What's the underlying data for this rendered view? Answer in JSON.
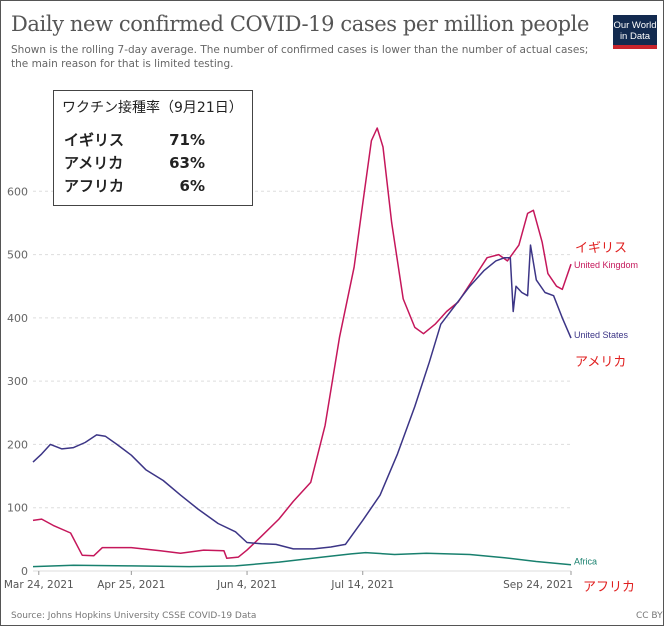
{
  "header": {
    "title": "Daily new confirmed COVID-19 cases per million people",
    "subtitle": "Shown is the rolling 7-day average. The number of confirmed cases is lower than the number of actual cases; the main reason for that is limited testing.",
    "logo_line1": "Our World",
    "logo_line2": "in Data"
  },
  "vaccine_box": {
    "title": "ワクチン接種率（9月21日）",
    "rows": [
      {
        "name": "イギリス",
        "pct": "71%"
      },
      {
        "name": "アメリカ",
        "pct": "63%"
      },
      {
        "name": "アフリカ",
        "pct": "6%"
      }
    ]
  },
  "jp_labels": {
    "uk": "イギリス",
    "us": "アメリカ",
    "africa": "アフリカ"
  },
  "footer": {
    "source": "Source: Johns Hopkins University CSSE COVID-19 Data",
    "license": "CC BY"
  },
  "colors": {
    "uk": "#c5175b",
    "us": "#3c3586",
    "africa": "#18806e",
    "grid": "#dddddd",
    "annotation": "#e02020"
  },
  "chart_data": {
    "type": "line",
    "title": "Daily new confirmed COVID-19 cases per million people",
    "xlabel": "",
    "ylabel": "",
    "ylim": [
      0,
      700
    ],
    "yticks": [
      0,
      100,
      200,
      300,
      400,
      500,
      600
    ],
    "xlim": [
      "2021-03-22",
      "2021-09-24"
    ],
    "xticks": [
      {
        "date": "2021-03-24",
        "label": "Mar 24, 2021"
      },
      {
        "date": "2021-04-25",
        "label": "Apr 25, 2021"
      },
      {
        "date": "2021-06-04",
        "label": "Jun 4, 2021"
      },
      {
        "date": "2021-07-14",
        "label": "Jul 14, 2021"
      },
      {
        "date": "2021-09-24",
        "label": "Sep 24, 2021"
      }
    ],
    "grid": "horizontal",
    "series": [
      {
        "name": "United Kingdom",
        "color": "#c5175b",
        "points": [
          [
            "2021-03-22",
            80
          ],
          [
            "2021-03-25",
            82
          ],
          [
            "2021-03-29",
            72
          ],
          [
            "2021-04-04",
            60
          ],
          [
            "2021-04-08",
            25
          ],
          [
            "2021-04-12",
            24
          ],
          [
            "2021-04-15",
            37
          ],
          [
            "2021-04-25",
            37
          ],
          [
            "2021-05-05",
            32
          ],
          [
            "2021-05-12",
            28
          ],
          [
            "2021-05-20",
            33
          ],
          [
            "2021-05-27",
            32
          ],
          [
            "2021-05-28",
            20
          ],
          [
            "2021-06-01",
            22
          ],
          [
            "2021-06-04",
            33
          ],
          [
            "2021-06-09",
            55
          ],
          [
            "2021-06-15",
            82
          ],
          [
            "2021-06-20",
            110
          ],
          [
            "2021-06-26",
            140
          ],
          [
            "2021-07-01",
            230
          ],
          [
            "2021-07-06",
            370
          ],
          [
            "2021-07-11",
            480
          ],
          [
            "2021-07-14",
            580
          ],
          [
            "2021-07-17",
            680
          ],
          [
            "2021-07-19",
            700
          ],
          [
            "2021-07-21",
            670
          ],
          [
            "2021-07-24",
            550
          ],
          [
            "2021-07-28",
            430
          ],
          [
            "2021-08-01",
            385
          ],
          [
            "2021-08-04",
            375
          ],
          [
            "2021-08-08",
            390
          ],
          [
            "2021-08-12",
            410
          ],
          [
            "2021-08-16",
            425
          ],
          [
            "2021-08-21",
            460
          ],
          [
            "2021-08-26",
            495
          ],
          [
            "2021-08-30",
            500
          ],
          [
            "2021-09-02",
            490
          ],
          [
            "2021-09-06",
            515
          ],
          [
            "2021-09-09",
            565
          ],
          [
            "2021-09-11",
            570
          ],
          [
            "2021-09-14",
            520
          ],
          [
            "2021-09-16",
            470
          ],
          [
            "2021-09-19",
            450
          ],
          [
            "2021-09-21",
            445
          ],
          [
            "2021-09-24",
            485
          ]
        ]
      },
      {
        "name": "United States",
        "color": "#3c3586",
        "points": [
          [
            "2021-03-22",
            172
          ],
          [
            "2021-03-25",
            185
          ],
          [
            "2021-03-28",
            200
          ],
          [
            "2021-04-01",
            193
          ],
          [
            "2021-04-05",
            195
          ],
          [
            "2021-04-09",
            203
          ],
          [
            "2021-04-13",
            215
          ],
          [
            "2021-04-16",
            213
          ],
          [
            "2021-04-20",
            200
          ],
          [
            "2021-04-25",
            183
          ],
          [
            "2021-04-30",
            160
          ],
          [
            "2021-05-06",
            143
          ],
          [
            "2021-05-12",
            120
          ],
          [
            "2021-05-18",
            98
          ],
          [
            "2021-05-25",
            75
          ],
          [
            "2021-05-31",
            62
          ],
          [
            "2021-06-04",
            45
          ],
          [
            "2021-06-09",
            43
          ],
          [
            "2021-06-14",
            42
          ],
          [
            "2021-06-20",
            35
          ],
          [
            "2021-06-27",
            35
          ],
          [
            "2021-07-03",
            38
          ],
          [
            "2021-07-08",
            42
          ],
          [
            "2021-07-14",
            80
          ],
          [
            "2021-07-20",
            120
          ],
          [
            "2021-07-26",
            185
          ],
          [
            "2021-08-01",
            260
          ],
          [
            "2021-08-06",
            330
          ],
          [
            "2021-08-10",
            390
          ],
          [
            "2021-08-15",
            420
          ],
          [
            "2021-08-20",
            450
          ],
          [
            "2021-08-25",
            475
          ],
          [
            "2021-08-29",
            490
          ],
          [
            "2021-09-01",
            495
          ],
          [
            "2021-09-03",
            495
          ],
          [
            "2021-09-04",
            410
          ],
          [
            "2021-09-05",
            450
          ],
          [
            "2021-09-07",
            440
          ],
          [
            "2021-09-09",
            435
          ],
          [
            "2021-09-10",
            515
          ],
          [
            "2021-09-12",
            460
          ],
          [
            "2021-09-15",
            440
          ],
          [
            "2021-09-18",
            435
          ],
          [
            "2021-09-21",
            400
          ],
          [
            "2021-09-24",
            368
          ]
        ]
      },
      {
        "name": "Africa",
        "color": "#18806e",
        "points": [
          [
            "2021-03-22",
            7
          ],
          [
            "2021-04-05",
            9
          ],
          [
            "2021-04-25",
            8
          ],
          [
            "2021-05-15",
            7
          ],
          [
            "2021-05-31",
            8
          ],
          [
            "2021-06-15",
            14
          ],
          [
            "2021-06-30",
            22
          ],
          [
            "2021-07-10",
            27
          ],
          [
            "2021-07-15",
            29
          ],
          [
            "2021-07-25",
            26
          ],
          [
            "2021-08-05",
            28
          ],
          [
            "2021-08-20",
            26
          ],
          [
            "2021-09-01",
            21
          ],
          [
            "2021-09-12",
            15
          ],
          [
            "2021-09-24",
            10
          ]
        ]
      }
    ]
  }
}
